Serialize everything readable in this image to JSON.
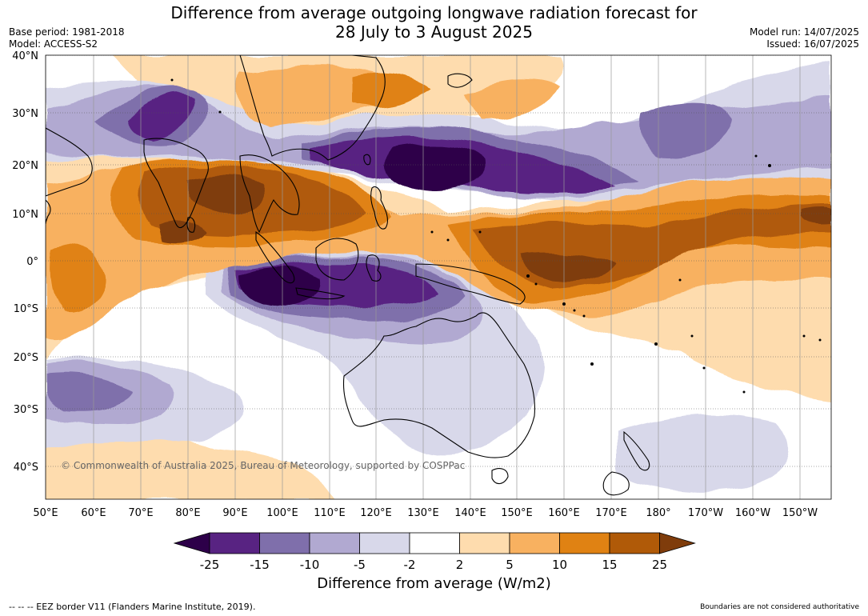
{
  "title": {
    "line1": "Difference from average outgoing longwave radiation forecast for",
    "line2": "28 July to 3 August 2025"
  },
  "meta": {
    "base_period": "Base period: 1981-2018",
    "model": "Model: ACCESS-S2",
    "model_run": "Model run: 14/07/2025",
    "issued": "Issued: 16/07/2025"
  },
  "map": {
    "copyright": "© Commonwealth of Australia 2025, Bureau of Meteorology, supported by COSPPac",
    "lat_labels": [
      "40°N",
      "30°N",
      "20°N",
      "10°N",
      "0°",
      "10°S",
      "20°S",
      "30°S",
      "40°S"
    ],
    "lon_labels": [
      "50°E",
      "60°E",
      "70°E",
      "80°E",
      "90°E",
      "100°E",
      "110°E",
      "120°E",
      "130°E",
      "140°E",
      "150°E",
      "160°E",
      "170°E",
      "180°",
      "170°W",
      "160°W",
      "150°W"
    ],
    "colors": {
      "neg25": "#2d0049",
      "neg15": "#582382",
      "neg10": "#7f6fab",
      "neg5": "#b1a9d1",
      "neg2": "#d8d8ea",
      "neutral": "#ffffff",
      "pos2": "#fedcae",
      "pos5": "#f8b160",
      "pos10": "#e08213",
      "pos15": "#b05a08",
      "pos25": "#7f3c0b",
      "coast": "#000000",
      "grid": "#555555"
    }
  },
  "colorbar": {
    "labels": [
      "-25",
      "-15",
      "-10",
      "-5",
      "-2",
      "2",
      "5",
      "10",
      "15",
      "25"
    ],
    "unit": "Difference from average (W/m2)"
  },
  "footer": {
    "eez": "--  --  -- EEZ border V11 (Flanders Marine Institute, 2019).",
    "disclaimer": "Boundaries are not considered authoritative"
  }
}
